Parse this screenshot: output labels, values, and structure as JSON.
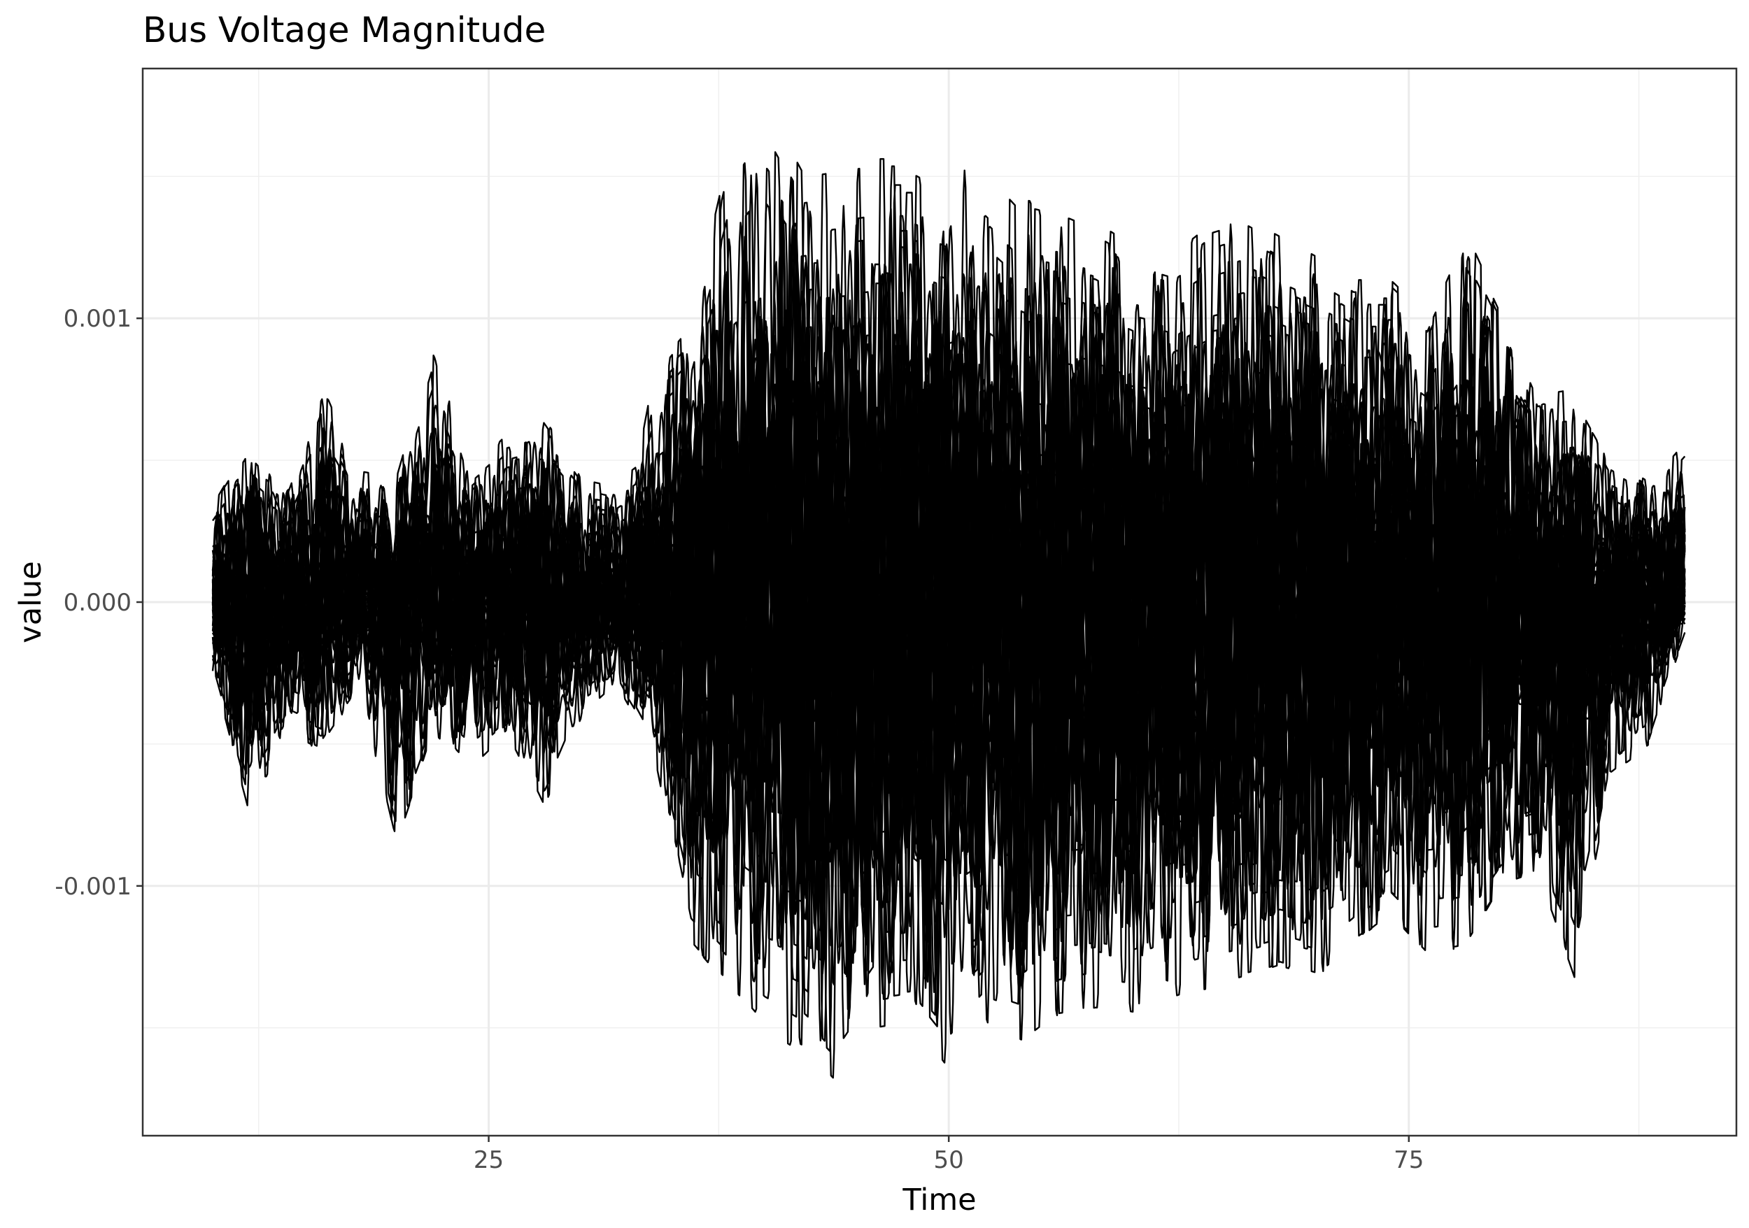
{
  "chart_data": {
    "type": "line",
    "title": "Bus Voltage Magnitude",
    "xlabel": "Time",
    "ylabel": "value",
    "xlim": [
      6.2,
      92.8
    ],
    "ylim": [
      -0.00188,
      0.00188
    ],
    "x_ticks": [
      25,
      50,
      75
    ],
    "x_tick_labels": [
      "25",
      "50",
      "75"
    ],
    "x_minor_ticks": [
      12.5,
      37.5,
      62.5,
      87.5
    ],
    "y_ticks": [
      -0.001,
      0.0,
      0.001
    ],
    "y_tick_labels": [
      "-0.001",
      "0.000",
      "0.001"
    ],
    "y_minor_ticks": [
      -0.0015,
      -0.0005,
      0.0005,
      0.0015
    ],
    "grid": true,
    "legend": "none",
    "line_color": "#000000",
    "x_range": [
      10,
      90
    ],
    "series_count": 40,
    "envelope": {
      "time": [
        10,
        12,
        14,
        16,
        18,
        20,
        22,
        24,
        26,
        28,
        30,
        32,
        33,
        34,
        36,
        38,
        40,
        42,
        44,
        46,
        48,
        50,
        52,
        54,
        56,
        58,
        60,
        62,
        64,
        66,
        68,
        70,
        72,
        74,
        76,
        78,
        80,
        82,
        84,
        86,
        88,
        90
      ],
      "upper": [
        0.00033,
        0.00055,
        0.0004,
        0.00077,
        0.00045,
        0.00043,
        0.00088,
        0.00045,
        0.00058,
        0.00062,
        0.00043,
        0.0004,
        0.00045,
        0.0008,
        0.00096,
        0.00152,
        0.00172,
        0.00148,
        0.0015,
        0.00152,
        0.00152,
        0.00145,
        0.00152,
        0.00138,
        0.00135,
        0.0013,
        0.00122,
        0.00118,
        0.00128,
        0.00132,
        0.00125,
        0.00118,
        0.0011,
        0.0011,
        0.00098,
        0.00128,
        0.001,
        0.0007,
        0.00072,
        0.00048,
        0.0004,
        0.00055
      ],
      "lower": [
        -0.00025,
        -0.00075,
        -0.00045,
        -0.00052,
        -0.0003,
        -0.00085,
        -0.00045,
        -0.00058,
        -0.00045,
        -0.00072,
        -0.0004,
        -0.00028,
        -0.0004,
        -0.00053,
        -0.0012,
        -0.00135,
        -0.0015,
        -0.00158,
        -0.00172,
        -0.0015,
        -0.00148,
        -0.00165,
        -0.0015,
        -0.00155,
        -0.00145,
        -0.00143,
        -0.00145,
        -0.0014,
        -0.00136,
        -0.00132,
        -0.00128,
        -0.00132,
        -0.0012,
        -0.0011,
        -0.00124,
        -0.00122,
        -0.001,
        -0.00095,
        -0.00132,
        -0.0006,
        -0.0005,
        -0.0001
      ]
    }
  }
}
